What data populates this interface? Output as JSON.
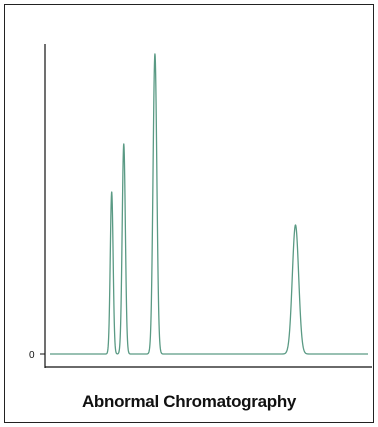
{
  "chart_data": {
    "type": "line",
    "title": "Abnormal Chromatography",
    "xlabel": "",
    "ylabel": "",
    "y_tick_labels": [
      "0"
    ],
    "y_ticks": [
      0
    ],
    "ylim": [
      0,
      100
    ],
    "xlim": [
      0,
      100
    ],
    "grid": false,
    "legend": "none",
    "line_color": "#5a9a84",
    "axis_color": "#111111",
    "series": [
      {
        "peaks": [
          {
            "x": 19.4,
            "height": 54,
            "width": 0.45
          },
          {
            "x": 23.2,
            "height": 70,
            "width": 0.5
          },
          {
            "x": 33.0,
            "height": 100,
            "width": 0.6
          },
          {
            "x": 77.2,
            "height": 43,
            "width": 1.0
          }
        ]
      }
    ]
  }
}
